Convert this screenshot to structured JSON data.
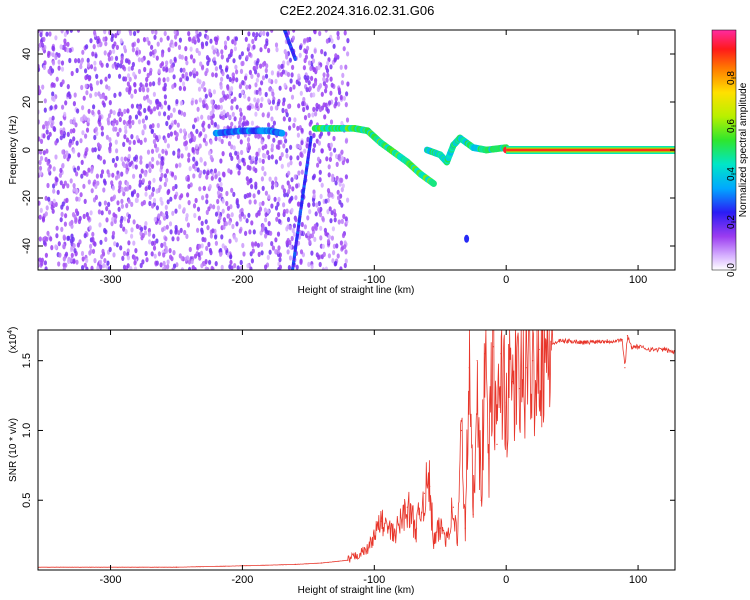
{
  "chart_data": [
    {
      "type": "heatmap",
      "title": "C2E2.2024.316.02.31.G06",
      "xlabel": "Height of straight line (km)",
      "ylabel": "Frequency (Hz)",
      "xlim": [
        -355,
        128
      ],
      "ylim": [
        -50,
        50
      ],
      "xticks": [
        -300,
        -200,
        -100,
        0,
        100
      ],
      "yticks": [
        -40,
        -20,
        0,
        20,
        40
      ],
      "colorbar": {
        "label": "Normalized spectral amplitude",
        "range": [
          0,
          1
        ],
        "ticks": [
          0.0,
          0.2,
          0.4,
          0.6,
          0.8
        ],
        "tick_labels": [
          "0.0",
          "0.2",
          "0.4",
          "0.6",
          "0.8"
        ]
      },
      "features": [
        {
          "name": "noise",
          "x_range": [
            -355,
            -120
          ],
          "y_range": [
            -50,
            50
          ],
          "amplitude": 0.15
        },
        {
          "name": "weak-ridge",
          "x": [
            -220,
            -200,
            -180,
            -170
          ],
          "y": [
            7,
            8,
            8,
            7
          ],
          "amplitude": 0.3
        },
        {
          "name": "steep-line-1",
          "x": [
            -168,
            -160
          ],
          "y": [
            50,
            38
          ],
          "amplitude": 0.25
        },
        {
          "name": "steep-line-2",
          "x": [
            -162,
            -155,
            -148
          ],
          "y": [
            -50,
            -22,
            5
          ],
          "amplitude": 0.25
        },
        {
          "name": "doppler-ridge",
          "x": [
            -145,
            -130,
            -115,
            -105,
            -95,
            -85,
            -75,
            -65,
            -55
          ],
          "y": [
            9,
            9,
            9,
            8,
            3,
            -1,
            -5,
            -10,
            -14
          ],
          "amplitude": 0.5
        },
        {
          "name": "ridge-break",
          "x": [
            -60,
            -50,
            -45,
            -40,
            -35,
            -25,
            -15,
            0
          ],
          "y": [
            0,
            -2,
            -5,
            2,
            5,
            1,
            0,
            1
          ],
          "amplitude": 0.45
        },
        {
          "name": "carrier",
          "x": [
            0,
            128
          ],
          "y": [
            0,
            0
          ],
          "amplitude": 0.9
        },
        {
          "name": "isolated",
          "x": [
            -30
          ],
          "y": [
            -37
          ],
          "amplitude": 0.25
        }
      ]
    },
    {
      "type": "line",
      "xlabel": "Height of straight line (km)",
      "ylabel": "SNR (10 * v/v)",
      "yscale_label": "(x10",
      "yscale_exp": "4",
      "xlim": [
        -355,
        128
      ],
      "ylim": [
        0,
        1.72
      ],
      "xticks": [
        -300,
        -200,
        -100,
        0,
        100
      ],
      "yticks": [
        0.5,
        1.0,
        1.5
      ],
      "ytick_labels": [
        "0.5",
        "1.0",
        "1.5"
      ],
      "series": [
        {
          "color": "#e8362b",
          "x": [
            -355,
            -300,
            -250,
            -200,
            -160,
            -140,
            -120,
            -105,
            -95,
            -85,
            -75,
            -68,
            -62,
            -58,
            -55,
            -50,
            -45,
            -40,
            -37,
            -34,
            -31,
            -28,
            -25,
            -22,
            -19,
            -16,
            -13,
            -10,
            -7,
            -4,
            0,
            5,
            10,
            15,
            20,
            25,
            30,
            35,
            40,
            50,
            60,
            70,
            80,
            88,
            90,
            92,
            95,
            100,
            110,
            120,
            128
          ],
          "y": [
            0.02,
            0.02,
            0.02,
            0.03,
            0.04,
            0.05,
            0.07,
            0.15,
            0.35,
            0.25,
            0.45,
            0.3,
            0.55,
            0.6,
            0.2,
            0.3,
            0.25,
            0.45,
            0.2,
            1.0,
            0.3,
            1.45,
            0.4,
            1.5,
            0.5,
            1.55,
            0.8,
            1.6,
            0.9,
            1.55,
            1.2,
            1.35,
            1.3,
            1.45,
            1.5,
            1.58,
            1.6,
            1.62,
            1.64,
            1.64,
            1.63,
            1.64,
            1.64,
            1.65,
            1.45,
            1.68,
            1.6,
            1.6,
            1.58,
            1.58,
            1.56
          ]
        }
      ]
    }
  ]
}
